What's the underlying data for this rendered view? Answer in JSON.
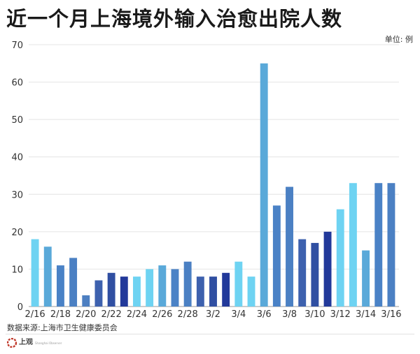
{
  "header": {
    "title": "近一个月上海境外输入治愈出院人数",
    "unit": "单位: 例"
  },
  "footer": {
    "source": "数据来源:上海市卫生健康委员会",
    "logo_text": "上观",
    "logo_sub": "Shanghai Observer"
  },
  "chart_data": {
    "type": "bar",
    "title": "近一个月上海境外输入治愈出院人数",
    "unit": "单位: 例",
    "categories": [
      "2/16",
      "2/17",
      "2/18",
      "2/19",
      "2/20",
      "2/21",
      "2/22",
      "2/23",
      "2/24",
      "2/25",
      "2/26",
      "2/27",
      "2/28",
      "3/1",
      "3/2",
      "3/3",
      "3/4",
      "3/5",
      "3/6",
      "3/7",
      "3/8",
      "3/9",
      "3/10",
      "3/11",
      "3/12",
      "3/13",
      "3/14",
      "3/15",
      "3/16"
    ],
    "x_tick_labels": [
      "2/16",
      "2/18",
      "2/20",
      "2/22",
      "2/24",
      "2/26",
      "2/28",
      "3/2",
      "3/4",
      "3/6",
      "3/8",
      "3/10",
      "3/12",
      "3/14",
      "3/16"
    ],
    "values": [
      18,
      16,
      11,
      13,
      3,
      7,
      9,
      8,
      8,
      10,
      11,
      10,
      12,
      8,
      8,
      9,
      12,
      8,
      65,
      27,
      32,
      18,
      17,
      20,
      26,
      33,
      15,
      33,
      33
    ],
    "bar_colors": [
      "#6ed3f2",
      "#5aa9d9",
      "#4a82c6",
      "#4b80c3",
      "#4d7fc1",
      "#3d61ae",
      "#304fa2",
      "#22399a",
      "#6ed3f2",
      "#6ed3f2",
      "#5aa9d9",
      "#4a82c6",
      "#4b80c3",
      "#3d61ae",
      "#304fa2",
      "#22399a",
      "#6ed3f2",
      "#6ed3f2",
      "#5aa9d9",
      "#4a82c6",
      "#4b80c3",
      "#3d61ae",
      "#304fa2",
      "#22399a",
      "#6ed3f2",
      "#6ed3f2",
      "#5aa9d9",
      "#4a82c6",
      "#4b80c3"
    ],
    "ylim": [
      0,
      70
    ],
    "yticks": [
      0,
      10,
      20,
      30,
      40,
      50,
      60,
      70
    ],
    "grid": true,
    "xlabel": "",
    "ylabel": ""
  }
}
